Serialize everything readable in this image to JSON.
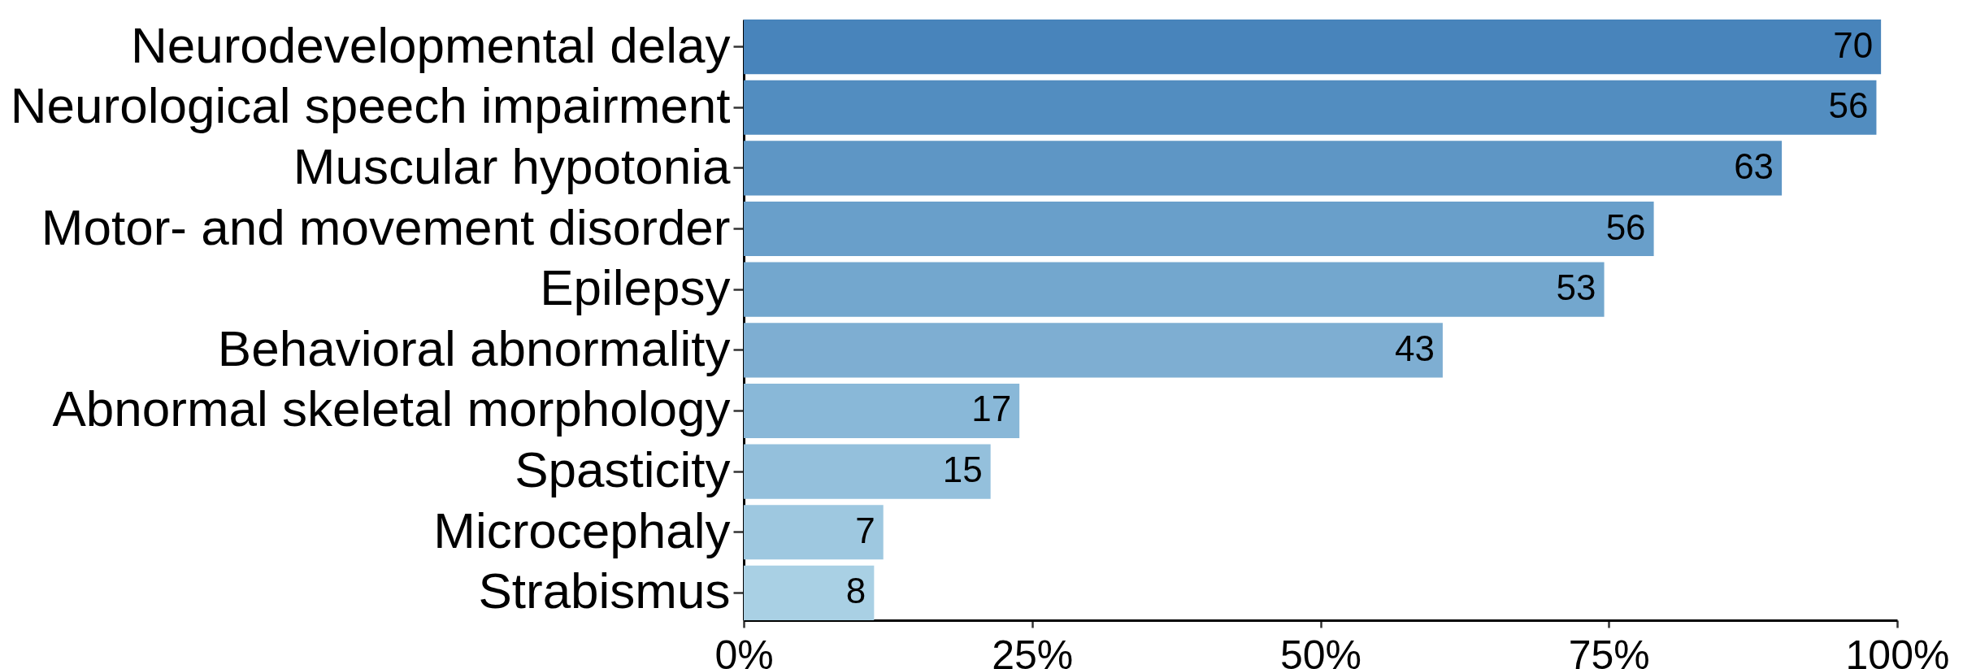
{
  "chart_data": {
    "type": "bar",
    "orientation": "horizontal",
    "categories": [
      "Neurodevelopmental delay",
      "Neurological speech impairment",
      "Muscular hypotonia",
      "Motor- and movement disorder",
      "Epilepsy",
      "Behavioral abnormality",
      "Abnormal skeletal morphology",
      "Spasticity",
      "Microcephaly",
      "Strabismus"
    ],
    "values": [
      98.6,
      98.2,
      90.0,
      78.9,
      74.6,
      60.6,
      23.9,
      21.4,
      12.1,
      11.3
    ],
    "colors": [
      "#4884bb",
      "#528dc0",
      "#5e96c5",
      "#699fca",
      "#73a7ce",
      "#7eaed2",
      "#89b8d8",
      "#94c0dc",
      "#9ec8e0",
      "#a9d0e4"
    ],
    "annotations": [
      {
        "text": "70",
        "x": 98.6,
        "y": "Neurodevelopmental delay"
      },
      {
        "text": "56",
        "x": 98.2,
        "y": "Neurological speech impairment"
      },
      {
        "text": "63",
        "x": 90.0,
        "y": "Muscular hypotonia"
      },
      {
        "text": "56",
        "x": 78.9,
        "y": "Motor- and movement disorder"
      },
      {
        "text": "53",
        "x": 74.6,
        "y": "Epilepsy"
      },
      {
        "text": "43",
        "x": 60.6,
        "y": "Behavioral abnormality"
      },
      {
        "text": "17",
        "x": 23.9,
        "y": "Abnormal skeletal morphology"
      },
      {
        "text": "15",
        "x": 21.4,
        "y": "Spasticity"
      },
      {
        "text": "7",
        "x": 12.1,
        "y": "Microcephaly"
      },
      {
        "text": "8",
        "x": 11.3,
        "y": "Strabismus"
      }
    ],
    "xlim": [
      0,
      100
    ],
    "xticks": [
      {
        "value": 0,
        "label": "0%"
      },
      {
        "value": 25,
        "label": "25%"
      },
      {
        "value": 50,
        "label": "50%"
      },
      {
        "value": 75,
        "label": "75%"
      },
      {
        "value": 100,
        "label": "100%"
      }
    ]
  }
}
